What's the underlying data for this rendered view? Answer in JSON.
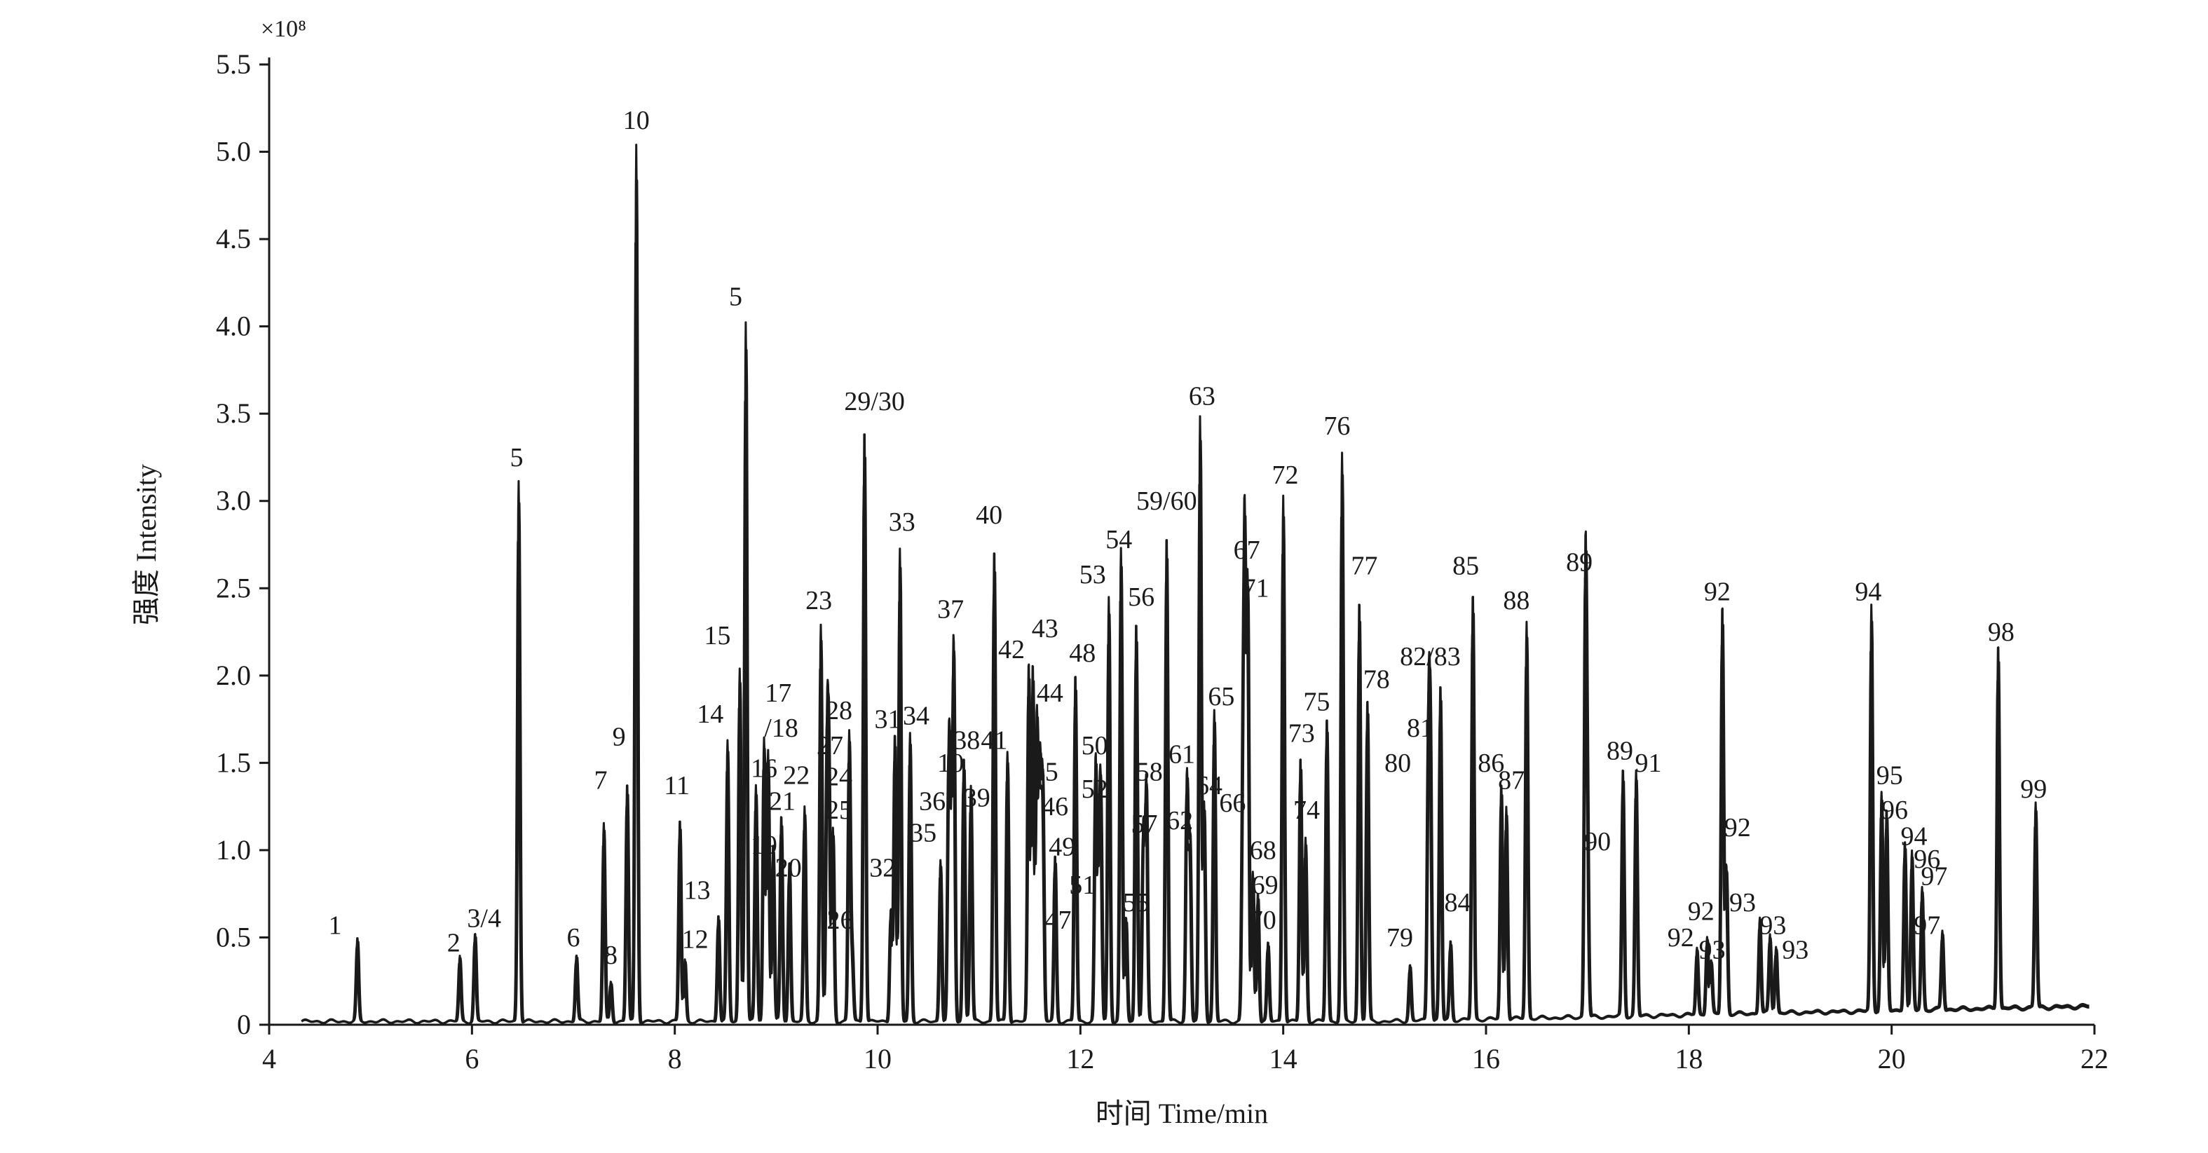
{
  "chart_data": {
    "type": "line",
    "xlabel": "时间 Time/min",
    "ylabel": "强度 Intensity",
    "y_multiplier_label": "×10⁸",
    "xlim": [
      4,
      22
    ],
    "ylim": [
      0,
      5.5
    ],
    "x_ticks": [
      4,
      6,
      8,
      10,
      12,
      14,
      16,
      18,
      20,
      22
    ],
    "x_tick_labels": [
      "4",
      "6",
      "8",
      "10",
      "12",
      "14",
      "16",
      "18",
      "20",
      "22"
    ],
    "y_ticks": [
      0,
      0.5,
      1.0,
      1.5,
      2.0,
      2.5,
      3.0,
      3.5,
      4.0,
      4.5,
      5.0,
      5.5
    ],
    "y_tick_labels": [
      "0",
      "0.5",
      "1.0",
      "1.5",
      "2.0",
      "2.5",
      "3.0",
      "3.5",
      "4.0",
      "4.5",
      "5.0",
      "5.5"
    ],
    "grid": false,
    "line_color": "#1a1a1a",
    "peaks": [
      {
        "label": "1",
        "t": 4.87,
        "h": 0.47,
        "lx": 4.65,
        "ly": 0.52
      },
      {
        "label": "2",
        "t": 5.88,
        "h": 0.37,
        "lx": 5.82,
        "ly": 0.42
      },
      {
        "label": "3/4",
        "t": 6.03,
        "h": 0.5,
        "lx": 6.12,
        "ly": 0.56
      },
      {
        "label": "5",
        "t": 6.46,
        "h": 3.1,
        "lx": 6.44,
        "ly": 3.2
      },
      {
        "label": "6",
        "t": 7.03,
        "h": 0.38,
        "lx": 7.0,
        "ly": 0.45
      },
      {
        "label": "7",
        "t": 7.3,
        "h": 1.13,
        "lx": 7.27,
        "ly": 1.35
      },
      {
        "label": "8",
        "t": 7.37,
        "h": 0.23,
        "lx": 7.37,
        "ly": 0.35
      },
      {
        "label": "9",
        "t": 7.53,
        "h": 1.37,
        "lx": 7.45,
        "ly": 1.6
      },
      {
        "label": "10",
        "t": 7.62,
        "h": 5.02,
        "lx": 7.62,
        "ly": 5.13
      },
      {
        "label": "11",
        "t": 8.05,
        "h": 1.16,
        "lx": 8.02,
        "ly": 1.32
      },
      {
        "label": "12",
        "t": 8.1,
        "h": 0.35,
        "lx": 8.2,
        "ly": 0.44
      },
      {
        "label": "13",
        "t": 8.43,
        "h": 0.62,
        "lx": 8.22,
        "ly": 0.72
      },
      {
        "label": "14",
        "t": 8.52,
        "h": 1.6,
        "lx": 8.35,
        "ly": 1.73
      },
      {
        "label": "15",
        "t": 8.64,
        "h": 2.02,
        "lx": 8.42,
        "ly": 2.18
      },
      {
        "label": "5",
        "t": 8.7,
        "h": 4.01,
        "lx": 8.6,
        "ly": 4.12
      },
      {
        "label": "16",
        "t": 8.8,
        "h": 1.35,
        "lx": 8.88,
        "ly": 1.42
      },
      {
        "label": "17",
        "t": 8.88,
        "h": 1.62,
        "lx": 9.02,
        "ly": 1.85
      },
      {
        "label": "/18",
        "t": 8.92,
        "h": 1.55,
        "lx": 9.05,
        "ly": 1.65
      },
      {
        "label": "19",
        "t": 8.97,
        "h": 1.02,
        "lx": 8.88,
        "ly": 0.98
      },
      {
        "label": "21",
        "t": 9.05,
        "h": 1.18,
        "lx": 9.06,
        "ly": 1.23
      },
      {
        "label": "20",
        "t": 9.13,
        "h": 0.92,
        "lx": 9.12,
        "ly": 0.85
      },
      {
        "label": "22",
        "t": 9.28,
        "h": 1.22,
        "lx": 9.2,
        "ly": 1.38
      },
      {
        "label": "23",
        "t": 9.44,
        "h": 2.27,
        "lx": 9.42,
        "ly": 2.38
      },
      {
        "label": "27",
        "t": 9.5,
        "h": 1.45,
        "lx": 9.53,
        "ly": 1.55
      },
      {
        "label": "24",
        "t": 9.52,
        "h": 1.3,
        "lx": 9.62,
        "ly": 1.37
      },
      {
        "label": "25",
        "t": 9.56,
        "h": 1.1,
        "lx": 9.62,
        "ly": 1.18
      },
      {
        "label": "28",
        "t": 9.72,
        "h": 1.65,
        "lx": 9.62,
        "ly": 1.75
      },
      {
        "label": "26",
        "t": 9.75,
        "h": 0.38,
        "lx": 9.63,
        "ly": 0.55
      },
      {
        "label": "29/30",
        "t": 9.87,
        "h": 3.42,
        "lx": 9.97,
        "ly": 3.52
      },
      {
        "label": "31",
        "t": 10.17,
        "h": 1.65,
        "lx": 10.1,
        "ly": 1.7
      },
      {
        "label": "32",
        "t": 10.13,
        "h": 0.65,
        "lx": 10.05,
        "ly": 0.85
      },
      {
        "label": "33",
        "t": 10.22,
        "h": 2.7,
        "lx": 10.24,
        "ly": 2.83
      },
      {
        "label": "34",
        "t": 10.32,
        "h": 1.65,
        "lx": 10.38,
        "ly": 1.72
      },
      {
        "label": "35",
        "t": 10.62,
        "h": 0.93,
        "lx": 10.45,
        "ly": 1.05
      },
      {
        "label": "36",
        "t": 10.72,
        "h": 1.05,
        "lx": 10.54,
        "ly": 1.23
      },
      {
        "label": "10",
        "t": 10.7,
        "h": 1.35,
        "lx": 10.72,
        "ly": 1.45
      },
      {
        "label": "37",
        "t": 10.75,
        "h": 2.17,
        "lx": 10.72,
        "ly": 2.33
      },
      {
        "label": "38",
        "t": 10.85,
        "h": 1.52,
        "lx": 10.88,
        "ly": 1.58
      },
      {
        "label": "39",
        "t": 10.92,
        "h": 1.35,
        "lx": 10.98,
        "ly": 1.25
      },
      {
        "label": "40",
        "t": 11.15,
        "h": 2.72,
        "lx": 11.1,
        "ly": 2.87
      },
      {
        "label": "41",
        "t": 11.28,
        "h": 1.55,
        "lx": 11.15,
        "ly": 1.58
      },
      {
        "label": "42",
        "t": 11.49,
        "h": 2.05,
        "lx": 11.32,
        "ly": 2.1
      },
      {
        "label": "43",
        "t": 11.53,
        "h": 2.05,
        "lx": 11.65,
        "ly": 2.22
      },
      {
        "label": "44",
        "t": 11.57,
        "h": 1.75,
        "lx": 11.7,
        "ly": 1.85
      },
      {
        "label": "45",
        "t": 11.6,
        "h": 1.38,
        "lx": 11.65,
        "ly": 1.4
      },
      {
        "label": "46",
        "t": 11.63,
        "h": 1.08,
        "lx": 11.75,
        "ly": 1.2
      },
      {
        "label": "47",
        "t": 11.62,
        "h": 0.38,
        "lx": 11.78,
        "ly": 0.55
      },
      {
        "label": "49",
        "t": 11.75,
        "h": 0.95,
        "lx": 11.82,
        "ly": 0.97
      },
      {
        "label": "48",
        "t": 11.95,
        "h": 2.0,
        "lx": 12.02,
        "ly": 2.08
      },
      {
        "label": "50",
        "t": 12.15,
        "h": 1.5,
        "lx": 12.14,
        "ly": 1.55
      },
      {
        "label": "51",
        "t": 12.18,
        "h": 0.7,
        "lx": 12.02,
        "ly": 0.75
      },
      {
        "label": "52",
        "t": 12.2,
        "h": 1.25,
        "lx": 12.14,
        "ly": 1.3
      },
      {
        "label": "53",
        "t": 12.28,
        "h": 2.43,
        "lx": 12.12,
        "ly": 2.53
      },
      {
        "label": "54",
        "t": 12.4,
        "h": 2.7,
        "lx": 12.38,
        "ly": 2.73
      },
      {
        "label": "55",
        "t": 12.45,
        "h": 0.6,
        "lx": 12.55,
        "ly": 0.65
      },
      {
        "label": "56",
        "t": 12.55,
        "h": 2.3,
        "lx": 12.6,
        "ly": 2.4
      },
      {
        "label": "57",
        "t": 12.62,
        "h": 1.1,
        "lx": 12.63,
        "ly": 1.1
      },
      {
        "label": "58",
        "t": 12.65,
        "h": 1.35,
        "lx": 12.68,
        "ly": 1.4
      },
      {
        "label": "59/60",
        "t": 12.85,
        "h": 2.8,
        "lx": 12.85,
        "ly": 2.95
      },
      {
        "label": "61",
        "t": 13.05,
        "h": 1.4,
        "lx": 13.0,
        "ly": 1.5
      },
      {
        "label": "62",
        "t": 13.08,
        "h": 1.05,
        "lx": 12.98,
        "ly": 1.12
      },
      {
        "label": "63",
        "t": 13.18,
        "h": 3.45,
        "lx": 13.2,
        "ly": 3.55
      },
      {
        "label": "64",
        "t": 13.22,
        "h": 1.25,
        "lx": 13.27,
        "ly": 1.32
      },
      {
        "label": "65",
        "t": 13.32,
        "h": 1.78,
        "lx": 13.39,
        "ly": 1.83
      },
      {
        "label": "66",
        "t": 13.6,
        "h": 1.15,
        "lx": 13.5,
        "ly": 1.22
      },
      {
        "label": "67",
        "t": 13.62,
        "h": 2.62,
        "lx": 13.64,
        "ly": 2.67
      },
      {
        "label": "71",
        "t": 13.65,
        "h": 2.45,
        "lx": 13.73,
        "ly": 2.45
      },
      {
        "label": "68",
        "t": 13.7,
        "h": 0.85,
        "lx": 13.8,
        "ly": 0.95
      },
      {
        "label": "69",
        "t": 13.75,
        "h": 0.75,
        "lx": 13.82,
        "ly": 0.75
      },
      {
        "label": "70",
        "t": 13.85,
        "h": 0.45,
        "lx": 13.8,
        "ly": 0.55
      },
      {
        "label": "72",
        "t": 14.0,
        "h": 3.02,
        "lx": 14.02,
        "ly": 3.1
      },
      {
        "label": "73",
        "t": 14.17,
        "h": 1.52,
        "lx": 14.18,
        "ly": 1.62
      },
      {
        "label": "74",
        "t": 14.22,
        "h": 1.05,
        "lx": 14.23,
        "ly": 1.18
      },
      {
        "label": "75",
        "t": 14.43,
        "h": 1.75,
        "lx": 14.33,
        "ly": 1.8
      },
      {
        "label": "76",
        "t": 14.58,
        "h": 3.25,
        "lx": 14.53,
        "ly": 3.38
      },
      {
        "label": "77",
        "t": 14.75,
        "h": 2.42,
        "lx": 14.8,
        "ly": 2.58
      },
      {
        "label": "78",
        "t": 14.83,
        "h": 1.85,
        "lx": 14.92,
        "ly": 1.93
      },
      {
        "label": "79",
        "t": 15.25,
        "h": 0.32,
        "lx": 15.15,
        "ly": 0.45
      },
      {
        "label": "80",
        "t": 15.43,
        "h": 1.45,
        "lx": 15.13,
        "ly": 1.45
      },
      {
        "label": "81",
        "t": 15.45,
        "h": 1.55,
        "lx": 15.35,
        "ly": 1.65
      },
      {
        "label": "82/83",
        "t": 15.55,
        "h": 1.93,
        "lx": 15.45,
        "ly": 2.06
      },
      {
        "label": "84",
        "t": 15.65,
        "h": 0.45,
        "lx": 15.72,
        "ly": 0.65
      },
      {
        "label": "85",
        "t": 15.87,
        "h": 2.45,
        "lx": 15.8,
        "ly": 2.58
      },
      {
        "label": "86",
        "t": 16.15,
        "h": 1.35,
        "lx": 16.05,
        "ly": 1.45
      },
      {
        "label": "87",
        "t": 16.2,
        "h": 1.22,
        "lx": 16.25,
        "ly": 1.35
      },
      {
        "label": "88",
        "t": 16.4,
        "h": 2.27,
        "lx": 16.3,
        "ly": 2.38
      },
      {
        "label": "89",
        "t": 16.98,
        "h": 2.52,
        "lx": 16.92,
        "ly": 2.6
      },
      {
        "label": "90",
        "t": 17.0,
        "h": 0.97,
        "lx": 17.1,
        "ly": 1.0
      },
      {
        "label": "89",
        "t": 17.35,
        "h": 1.42,
        "lx": 17.32,
        "ly": 1.52
      },
      {
        "label": "91",
        "t": 17.48,
        "h": 1.4,
        "lx": 17.6,
        "ly": 1.45
      },
      {
        "label": "92",
        "t": 18.08,
        "h": 0.38,
        "lx": 17.92,
        "ly": 0.45
      },
      {
        "label": "92",
        "t": 18.18,
        "h": 0.45,
        "lx": 18.12,
        "ly": 0.6
      },
      {
        "label": "93",
        "t": 18.22,
        "h": 0.3,
        "lx": 18.23,
        "ly": 0.38
      },
      {
        "label": "92",
        "t": 18.33,
        "h": 2.35,
        "lx": 18.28,
        "ly": 2.43
      },
      {
        "label": "92",
        "t": 18.37,
        "h": 0.85,
        "lx": 18.48,
        "ly": 1.08
      },
      {
        "label": "93",
        "t": 18.7,
        "h": 0.55,
        "lx": 18.53,
        "ly": 0.65
      },
      {
        "label": "93",
        "t": 18.8,
        "h": 0.45,
        "lx": 18.83,
        "ly": 0.52
      },
      {
        "label": "93",
        "t": 18.86,
        "h": 0.38,
        "lx": 19.05,
        "ly": 0.38
      },
      {
        "label": "94",
        "t": 19.8,
        "h": 2.32,
        "lx": 19.77,
        "ly": 2.43
      },
      {
        "label": "95",
        "t": 19.9,
        "h": 1.25,
        "lx": 19.98,
        "ly": 1.38
      },
      {
        "label": "96",
        "t": 19.95,
        "h": 1.15,
        "lx": 20.03,
        "ly": 1.18
      },
      {
        "label": "94",
        "t": 20.13,
        "h": 0.98,
        "lx": 20.22,
        "ly": 1.03
      },
      {
        "label": "96",
        "t": 20.2,
        "h": 0.9,
        "lx": 20.35,
        "ly": 0.9
      },
      {
        "label": "97",
        "t": 20.3,
        "h": 0.7,
        "lx": 20.42,
        "ly": 0.8
      },
      {
        "label": "97",
        "t": 20.5,
        "h": 0.45,
        "lx": 20.35,
        "ly": 0.52
      },
      {
        "label": "98",
        "t": 21.05,
        "h": 2.1,
        "lx": 21.08,
        "ly": 2.2
      },
      {
        "label": "99",
        "t": 21.42,
        "h": 1.17,
        "lx": 21.4,
        "ly": 1.3
      }
    ]
  }
}
